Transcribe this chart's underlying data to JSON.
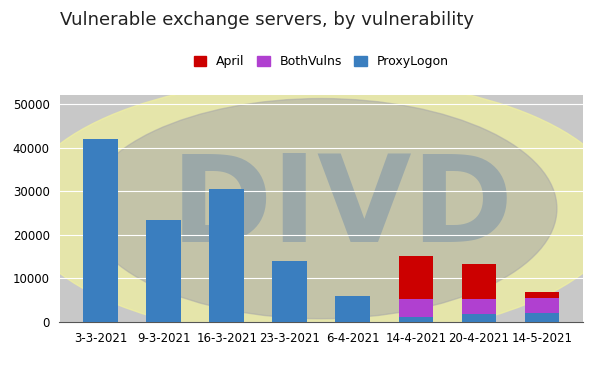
{
  "title": "Vulnerable exchange servers, by vulnerability",
  "categories": [
    "3-3-2021",
    "9-3-2021",
    "16-3-2021",
    "23-3-2021",
    "6-4-2021",
    "14-4-2021",
    "20-4-2021",
    "14-5-2021"
  ],
  "series": {
    "ProxyLogon": [
      42000,
      23500,
      30500,
      14000,
      6000,
      1200,
      1800,
      2000
    ],
    "BothVulns": [
      0,
      0,
      0,
      0,
      0,
      4000,
      3500,
      3500
    ],
    "April": [
      0,
      0,
      0,
      0,
      0,
      10000,
      8000,
      1500
    ]
  },
  "colors": {
    "ProxyLogon": "#3a7ebf",
    "BothVulns": "#b040d0",
    "April": "#cc0000"
  },
  "ylim": [
    0,
    52000
  ],
  "yticks": [
    0,
    10000,
    20000,
    30000,
    40000,
    50000
  ],
  "fig_bg": "#ffffff",
  "plot_bg": "#c8c8c8",
  "title_fontsize": 13,
  "legend_fontsize": 9,
  "tick_fontsize": 8.5,
  "bar_width": 0.55,
  "watermark_text": "DIVD",
  "watermark_color": "#5a7ea8",
  "watermark_alpha": 0.38,
  "yellow_ellipse_color": "#f0f0a0",
  "yellow_ellipse_alpha": 0.75,
  "gray_circle_color": "#a8a8a8",
  "gray_circle_alpha": 0.55
}
